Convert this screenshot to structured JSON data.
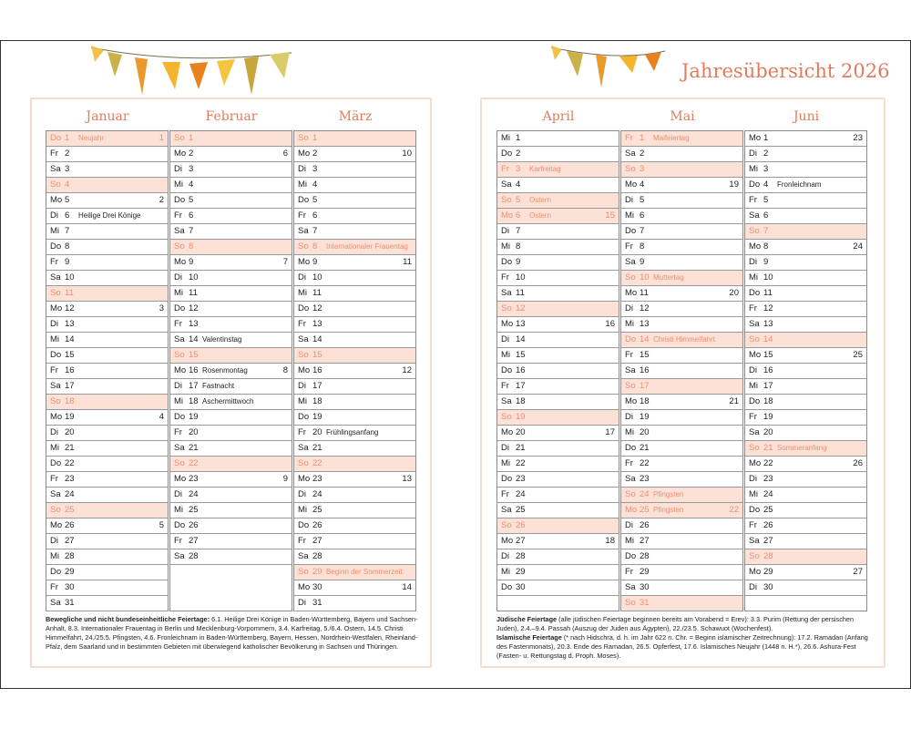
{
  "header": {
    "title": "Jahresübersicht 2026"
  },
  "months": [
    {
      "name": "Januar",
      "days": [
        {
          "wd": "Do",
          "d": 1,
          "note": "Neujahr",
          "kw": 1,
          "red": true
        },
        {
          "wd": "Fr",
          "d": 2
        },
        {
          "wd": "Sa",
          "d": 3
        },
        {
          "wd": "So",
          "d": 4,
          "red": true
        },
        {
          "wd": "Mo",
          "d": 5,
          "kw": 2
        },
        {
          "wd": "Di",
          "d": 6,
          "note": "Heilige Drei Könige"
        },
        {
          "wd": "Mi",
          "d": 7
        },
        {
          "wd": "Do",
          "d": 8
        },
        {
          "wd": "Fr",
          "d": 9
        },
        {
          "wd": "Sa",
          "d": 10
        },
        {
          "wd": "So",
          "d": 11,
          "red": true
        },
        {
          "wd": "Mo",
          "d": 12,
          "kw": 3
        },
        {
          "wd": "Di",
          "d": 13
        },
        {
          "wd": "Mi",
          "d": 14
        },
        {
          "wd": "Do",
          "d": 15
        },
        {
          "wd": "Fr",
          "d": 16
        },
        {
          "wd": "Sa",
          "d": 17
        },
        {
          "wd": "So",
          "d": 18,
          "red": true
        },
        {
          "wd": "Mo",
          "d": 19,
          "kw": 4
        },
        {
          "wd": "Di",
          "d": 20
        },
        {
          "wd": "Mi",
          "d": 21
        },
        {
          "wd": "Do",
          "d": 22
        },
        {
          "wd": "Fr",
          "d": 23
        },
        {
          "wd": "Sa",
          "d": 24
        },
        {
          "wd": "So",
          "d": 25,
          "red": true
        },
        {
          "wd": "Mo",
          "d": 26,
          "kw": 5
        },
        {
          "wd": "Di",
          "d": 27
        },
        {
          "wd": "Mi",
          "d": 28
        },
        {
          "wd": "Do",
          "d": 29
        },
        {
          "wd": "Fr",
          "d": 30
        },
        {
          "wd": "Sa",
          "d": 31
        }
      ]
    },
    {
      "name": "Februar",
      "days": [
        {
          "wd": "So",
          "d": 1,
          "red": true
        },
        {
          "wd": "Mo",
          "d": 2,
          "kw": 6
        },
        {
          "wd": "Di",
          "d": 3
        },
        {
          "wd": "Mi",
          "d": 4
        },
        {
          "wd": "Do",
          "d": 5
        },
        {
          "wd": "Fr",
          "d": 6
        },
        {
          "wd": "Sa",
          "d": 7
        },
        {
          "wd": "So",
          "d": 8,
          "red": true
        },
        {
          "wd": "Mo",
          "d": 9,
          "kw": 7
        },
        {
          "wd": "Di",
          "d": 10
        },
        {
          "wd": "Mi",
          "d": 11
        },
        {
          "wd": "Do",
          "d": 12
        },
        {
          "wd": "Fr",
          "d": 13
        },
        {
          "wd": "Sa",
          "d": 14,
          "note": "Valentinstag"
        },
        {
          "wd": "So",
          "d": 15,
          "red": true
        },
        {
          "wd": "Mo",
          "d": 16,
          "note": "Rosenmontag",
          "kw": 8
        },
        {
          "wd": "Di",
          "d": 17,
          "note": "Fastnacht"
        },
        {
          "wd": "Mi",
          "d": 18,
          "note": "Aschermittwoch"
        },
        {
          "wd": "Do",
          "d": 19
        },
        {
          "wd": "Fr",
          "d": 20
        },
        {
          "wd": "Sa",
          "d": 21
        },
        {
          "wd": "So",
          "d": 22,
          "red": true
        },
        {
          "wd": "Mo",
          "d": 23,
          "kw": 9
        },
        {
          "wd": "Di",
          "d": 24
        },
        {
          "wd": "Mi",
          "d": 25
        },
        {
          "wd": "Do",
          "d": 26
        },
        {
          "wd": "Fr",
          "d": 27
        },
        {
          "wd": "Sa",
          "d": 28
        }
      ]
    },
    {
      "name": "März",
      "days": [
        {
          "wd": "So",
          "d": 1,
          "red": true
        },
        {
          "wd": "Mo",
          "d": 2,
          "kw": 10
        },
        {
          "wd": "Di",
          "d": 3
        },
        {
          "wd": "Mi",
          "d": 4
        },
        {
          "wd": "Do",
          "d": 5
        },
        {
          "wd": "Fr",
          "d": 6
        },
        {
          "wd": "Sa",
          "d": 7
        },
        {
          "wd": "So",
          "d": 8,
          "note": "Internationaler Frauentag",
          "red": true
        },
        {
          "wd": "Mo",
          "d": 9,
          "kw": 11
        },
        {
          "wd": "Di",
          "d": 10
        },
        {
          "wd": "Mi",
          "d": 11
        },
        {
          "wd": "Do",
          "d": 12
        },
        {
          "wd": "Fr",
          "d": 13
        },
        {
          "wd": "Sa",
          "d": 14
        },
        {
          "wd": "So",
          "d": 15,
          "red": true
        },
        {
          "wd": "Mo",
          "d": 16,
          "kw": 12
        },
        {
          "wd": "Di",
          "d": 17
        },
        {
          "wd": "Mi",
          "d": 18
        },
        {
          "wd": "Do",
          "d": 19
        },
        {
          "wd": "Fr",
          "d": 20,
          "note": "Frühlingsanfang"
        },
        {
          "wd": "Sa",
          "d": 21
        },
        {
          "wd": "So",
          "d": 22,
          "red": true
        },
        {
          "wd": "Mo",
          "d": 23,
          "kw": 13
        },
        {
          "wd": "Di",
          "d": 24
        },
        {
          "wd": "Mi",
          "d": 25
        },
        {
          "wd": "Do",
          "d": 26
        },
        {
          "wd": "Fr",
          "d": 27
        },
        {
          "wd": "Sa",
          "d": 28
        },
        {
          "wd": "So",
          "d": 29,
          "note": "Beginn der Sommerzeit",
          "red": true
        },
        {
          "wd": "Mo",
          "d": 30,
          "kw": 14
        },
        {
          "wd": "Di",
          "d": 31
        }
      ]
    },
    {
      "name": "April",
      "days": [
        {
          "wd": "Mi",
          "d": 1
        },
        {
          "wd": "Do",
          "d": 2
        },
        {
          "wd": "Fr",
          "d": 3,
          "note": "Karfreitag",
          "red": true
        },
        {
          "wd": "Sa",
          "d": 4
        },
        {
          "wd": "So",
          "d": 5,
          "note": "Ostern",
          "red": true
        },
        {
          "wd": "Mo",
          "d": 6,
          "note": "Ostern",
          "kw": 15,
          "red": true
        },
        {
          "wd": "Di",
          "d": 7
        },
        {
          "wd": "Mi",
          "d": 8
        },
        {
          "wd": "Do",
          "d": 9
        },
        {
          "wd": "Fr",
          "d": 10
        },
        {
          "wd": "Sa",
          "d": 11
        },
        {
          "wd": "So",
          "d": 12,
          "red": true
        },
        {
          "wd": "Mo",
          "d": 13,
          "kw": 16
        },
        {
          "wd": "Di",
          "d": 14
        },
        {
          "wd": "Mi",
          "d": 15
        },
        {
          "wd": "Do",
          "d": 16
        },
        {
          "wd": "Fr",
          "d": 17
        },
        {
          "wd": "Sa",
          "d": 18
        },
        {
          "wd": "So",
          "d": 19,
          "red": true
        },
        {
          "wd": "Mo",
          "d": 20,
          "kw": 17
        },
        {
          "wd": "Di",
          "d": 21
        },
        {
          "wd": "Mi",
          "d": 22
        },
        {
          "wd": "Do",
          "d": 23
        },
        {
          "wd": "Fr",
          "d": 24
        },
        {
          "wd": "Sa",
          "d": 25
        },
        {
          "wd": "So",
          "d": 26,
          "red": true
        },
        {
          "wd": "Mo",
          "d": 27,
          "kw": 18
        },
        {
          "wd": "Di",
          "d": 28
        },
        {
          "wd": "Mi",
          "d": 29
        },
        {
          "wd": "Do",
          "d": 30
        }
      ]
    },
    {
      "name": "Mai",
      "days": [
        {
          "wd": "Fr",
          "d": 1,
          "note": "Maifeiertag",
          "red": true
        },
        {
          "wd": "Sa",
          "d": 2
        },
        {
          "wd": "So",
          "d": 3,
          "red": true
        },
        {
          "wd": "Mo",
          "d": 4,
          "kw": 19
        },
        {
          "wd": "Di",
          "d": 5
        },
        {
          "wd": "Mi",
          "d": 6
        },
        {
          "wd": "Do",
          "d": 7
        },
        {
          "wd": "Fr",
          "d": 8
        },
        {
          "wd": "Sa",
          "d": 9
        },
        {
          "wd": "So",
          "d": 10,
          "note": "Muttertag",
          "red": true
        },
        {
          "wd": "Mo",
          "d": 11,
          "kw": 20
        },
        {
          "wd": "Di",
          "d": 12
        },
        {
          "wd": "Mi",
          "d": 13
        },
        {
          "wd": "Do",
          "d": 14,
          "note": "Christi Himmelfahrt",
          "red": true
        },
        {
          "wd": "Fr",
          "d": 15
        },
        {
          "wd": "Sa",
          "d": 16
        },
        {
          "wd": "So",
          "d": 17,
          "red": true
        },
        {
          "wd": "Mo",
          "d": 18,
          "kw": 21
        },
        {
          "wd": "Di",
          "d": 19
        },
        {
          "wd": "Mi",
          "d": 20
        },
        {
          "wd": "Do",
          "d": 21
        },
        {
          "wd": "Fr",
          "d": 22
        },
        {
          "wd": "Sa",
          "d": 23
        },
        {
          "wd": "So",
          "d": 24,
          "note": "Pfingsten",
          "red": true
        },
        {
          "wd": "Mo",
          "d": 25,
          "note": "Pfingsten",
          "kw": 22,
          "red": true
        },
        {
          "wd": "Di",
          "d": 26
        },
        {
          "wd": "Mi",
          "d": 27
        },
        {
          "wd": "Do",
          "d": 28
        },
        {
          "wd": "Fr",
          "d": 29
        },
        {
          "wd": "Sa",
          "d": 30
        },
        {
          "wd": "So",
          "d": 31,
          "red": true
        }
      ]
    },
    {
      "name": "Juni",
      "days": [
        {
          "wd": "Mo",
          "d": 1,
          "kw": 23
        },
        {
          "wd": "Di",
          "d": 2
        },
        {
          "wd": "Mi",
          "d": 3
        },
        {
          "wd": "Do",
          "d": 4,
          "note": "Fronleichnam"
        },
        {
          "wd": "Fr",
          "d": 5
        },
        {
          "wd": "Sa",
          "d": 6
        },
        {
          "wd": "So",
          "d": 7,
          "red": true
        },
        {
          "wd": "Mo",
          "d": 8,
          "kw": 24
        },
        {
          "wd": "Di",
          "d": 9
        },
        {
          "wd": "Mi",
          "d": 10
        },
        {
          "wd": "Do",
          "d": 11
        },
        {
          "wd": "Fr",
          "d": 12
        },
        {
          "wd": "Sa",
          "d": 13
        },
        {
          "wd": "So",
          "d": 14,
          "red": true
        },
        {
          "wd": "Mo",
          "d": 15,
          "kw": 25
        },
        {
          "wd": "Di",
          "d": 16
        },
        {
          "wd": "Mi",
          "d": 17
        },
        {
          "wd": "Do",
          "d": 18
        },
        {
          "wd": "Fr",
          "d": 19
        },
        {
          "wd": "Sa",
          "d": 20
        },
        {
          "wd": "So",
          "d": 21,
          "note": "Sommeranfang",
          "red": true
        },
        {
          "wd": "Mo",
          "d": 22,
          "kw": 26
        },
        {
          "wd": "Di",
          "d": 23
        },
        {
          "wd": "Mi",
          "d": 24
        },
        {
          "wd": "Do",
          "d": 25
        },
        {
          "wd": "Fr",
          "d": 26
        },
        {
          "wd": "Sa",
          "d": 27
        },
        {
          "wd": "So",
          "d": 28,
          "red": true
        },
        {
          "wd": "Mo",
          "d": 29,
          "kw": 27
        },
        {
          "wd": "Di",
          "d": 30
        }
      ]
    }
  ],
  "notes": {
    "left": [
      {
        "heading": "Bewegliche und nicht bundeseinheitliche Feiertage:",
        "text": "6.1. Heilige Drei Könige in Baden-Württemberg, Bayern und Sachsen-Anhalt, 8.3. Internationaler Frauentag in Berlin und Mecklenburg-Vorpommern, 3.4. Karfreitag, 5./6.4. Ostern, 14.5. Christi Himmelfahrt, 24./25.5. Pfingsten, 4.6. Fronleichnam in Baden-Württemberg, Bayern, Hessen, Nordrhein-Westfalen, Rheinland-Pfalz, dem Saarland und in bestimmten Gebieten mit überwiegend katholischer Bevölkerung in Sachsen und Thüringen."
      }
    ],
    "right": [
      {
        "heading": "Jüdische Feiertage",
        "text": "(alle jüdischen Feiertage beginnen bereits am Vorabend = Erev): 3.3. Purim (Rettung der persischen Juden), 2.4.–9.4. Passah (Auszug der Juden aus Ägypten), 22./23.5. Schawuot (Wochenfest)."
      },
      {
        "heading": "Islamische Feiertage",
        "text": "(* nach Hidschra, d. h. im Jahr 622 n. Chr. = Beginn islamischer Zeitrechnung): 17.2. Ramadan (Anfang des Fastenmonats), 20.3. Ende des Ramadan, 26.5. Opferfest, 17.6. Islamisches Neujahr (1448 n. H.*), 26.6. Ashura-Fest (Fasten- u. Rettungstag d. Proph. Moses)."
      }
    ]
  }
}
